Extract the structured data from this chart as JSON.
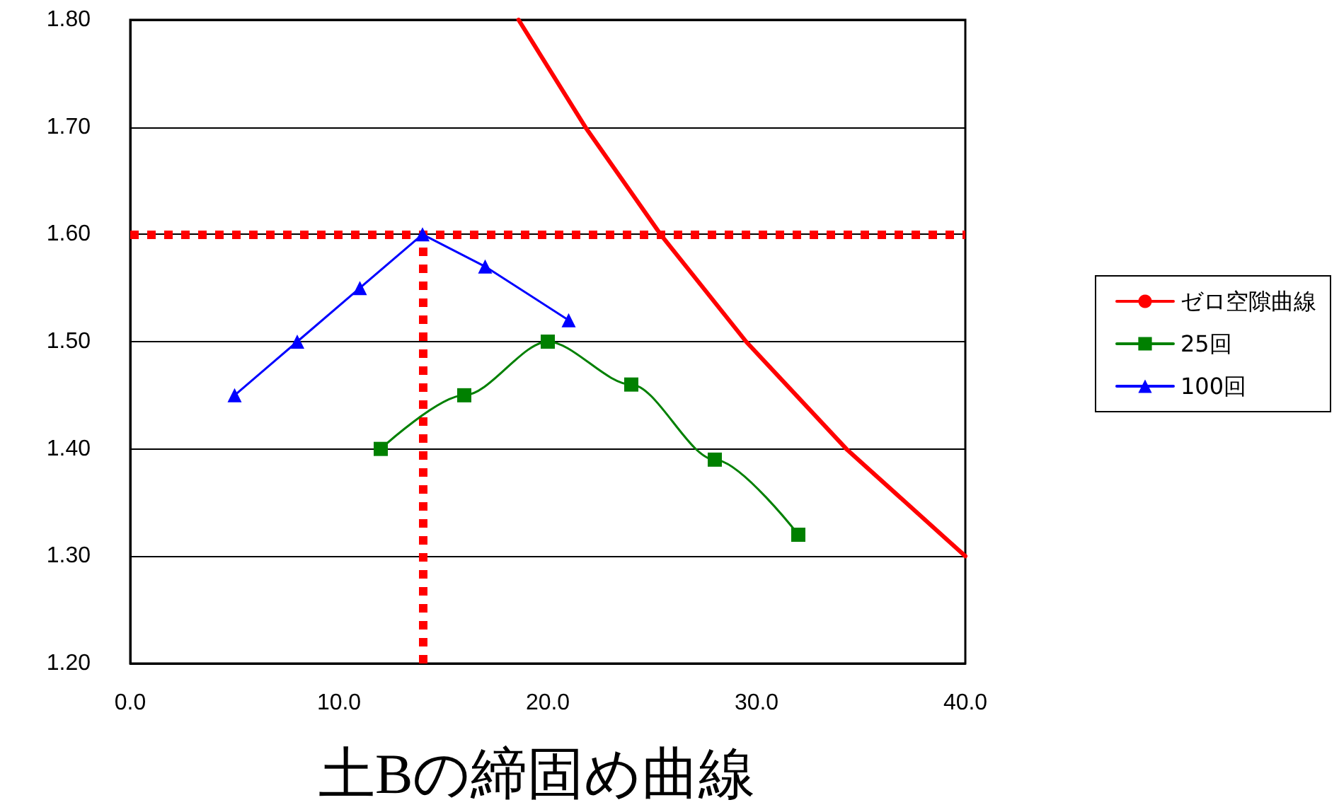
{
  "chart_data": {
    "type": "line",
    "title": "土Bの締固め曲線",
    "xlim": [
      0,
      40
    ],
    "xticks": [
      {
        "value": 0,
        "label": "0.0"
      },
      {
        "value": 10,
        "label": "10.0"
      },
      {
        "value": 20,
        "label": "20.0"
      },
      {
        "value": 30,
        "label": "30.0"
      },
      {
        "value": 40,
        "label": "40.0"
      }
    ],
    "ylim": [
      1.2,
      1.8
    ],
    "yticks": [
      {
        "value": 1.2,
        "label": "1.20"
      },
      {
        "value": 1.3,
        "label": "1.30"
      },
      {
        "value": 1.4,
        "label": "1.40"
      },
      {
        "value": 1.5,
        "label": "1.50"
      },
      {
        "value": 1.6,
        "label": "1.60"
      },
      {
        "value": 1.7,
        "label": "1.70"
      },
      {
        "value": 1.8,
        "label": "1.80"
      }
    ],
    "grid": "y",
    "legend": "right",
    "line_style": "solid",
    "series": [
      {
        "name": "ゼロ空隙曲線",
        "color": "#ff0000",
        "marker": "none",
        "x": [
          18.6,
          21.8,
          25.4,
          29.5,
          34.3,
          40
        ],
        "values": [
          1.8,
          1.7,
          1.6,
          1.5,
          1.4,
          1.3
        ]
      },
      {
        "name": "25回",
        "color": "#008000",
        "marker": "square",
        "x": [
          12,
          16,
          20,
          24,
          28,
          32
        ],
        "values": [
          1.4,
          1.45,
          1.5,
          1.46,
          1.39,
          1.32
        ]
      },
      {
        "name": "100回",
        "color": "#0000ff",
        "marker": "triangle",
        "x": [
          5,
          8,
          11,
          14,
          17,
          21
        ],
        "values": [
          1.45,
          1.5,
          1.55,
          1.6,
          1.57,
          1.52
        ]
      }
    ],
    "ref_lines": [
      {
        "axis": "y",
        "value": 1.6,
        "color": "#ff0000",
        "line_style": "dotted"
      },
      {
        "axis": "x",
        "value": 14,
        "color": "#ff0000",
        "line_style": "dotted"
      }
    ]
  }
}
